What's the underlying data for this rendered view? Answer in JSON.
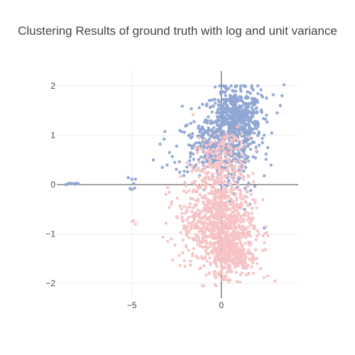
{
  "chart_data": {
    "type": "scatter",
    "title": "Clustering Results of ground truth with log and unit variance",
    "xlabel": "",
    "ylabel": "",
    "xlim": [
      -9.2,
      4.3
    ],
    "ylim": [
      -2.3,
      2.3
    ],
    "x_ticks": [
      -5,
      0
    ],
    "x_tick_labels": [
      "−5",
      "0"
    ],
    "y_ticks": [
      -2,
      -1,
      0,
      1,
      2
    ],
    "y_tick_labels": [
      "−2",
      "−1",
      "0",
      "1",
      "2"
    ],
    "grid": true,
    "zero_lines": true,
    "legend": "none",
    "colors": {
      "blue": "#8fa5d2",
      "pink": "#f6c3c5"
    },
    "series": [
      {
        "color": "#8fa5d2",
        "clusters": [
          {
            "cx": 0.6,
            "cy": 1.15,
            "sx": 0.8,
            "sy": 0.38,
            "n": 600
          },
          {
            "cx": -0.8,
            "cy": 0.75,
            "sx": 0.9,
            "sy": 0.3,
            "n": 180
          },
          {
            "cx": 1.2,
            "cy": 1.5,
            "sx": 0.6,
            "sy": 0.25,
            "n": 120
          },
          {
            "cx": 0.8,
            "cy": 0.2,
            "sx": 0.5,
            "sy": 0.25,
            "n": 50
          }
        ],
        "points": [
          [
            -8.3,
            0.02
          ],
          [
            -8.6,
            0.01
          ],
          [
            -8.1,
            0.03
          ],
          [
            -8.4,
            0.02
          ],
          [
            -8.7,
            0.0
          ],
          [
            -8.0,
            0.02
          ],
          [
            -8.2,
            0.01
          ],
          [
            -8.5,
            0.03
          ],
          [
            -5.2,
            0.14
          ],
          [
            -5.0,
            0.11
          ],
          [
            -4.9,
            0.02
          ],
          [
            -4.8,
            0.11
          ],
          [
            -5.1,
            -0.08
          ],
          [
            -5.0,
            -0.1
          ],
          [
            -4.85,
            -0.07
          ],
          [
            -3.8,
            0.5
          ],
          [
            -3.3,
            0.35
          ],
          [
            -3.2,
            0.92
          ],
          [
            -2.9,
            0.65
          ],
          [
            -2.6,
            0.45
          ],
          [
            3.5,
            2.02
          ],
          [
            3.4,
            1.8
          ],
          [
            3.3,
            1.6
          ],
          [
            2.9,
            1.82
          ],
          [
            2.6,
            0.75
          ],
          [
            2.5,
            0.62
          ],
          [
            2.3,
            0.85
          ],
          [
            1.6,
            -0.4
          ],
          [
            1.3,
            -0.5
          ],
          [
            2.4,
            -0.88
          ]
        ]
      },
      {
        "color": "#f6c3c5",
        "clusters": [
          {
            "cx": 0.1,
            "cy": -0.85,
            "sx": 0.85,
            "sy": 0.45,
            "n": 700
          },
          {
            "cx": 0.7,
            "cy": -1.45,
            "sx": 0.6,
            "sy": 0.2,
            "n": 200
          },
          {
            "cx": -1.3,
            "cy": -0.6,
            "sx": 0.7,
            "sy": 0.35,
            "n": 150
          },
          {
            "cx": -0.2,
            "cy": 0.35,
            "sx": 0.7,
            "sy": 0.3,
            "n": 180
          },
          {
            "cx": 0.3,
            "cy": 0.85,
            "sx": 0.5,
            "sy": 0.15,
            "n": 40
          }
        ],
        "points": [
          [
            -5.0,
            -0.75
          ],
          [
            -4.8,
            -0.8
          ],
          [
            -4.9,
            -0.73
          ],
          [
            -3.0,
            -1.15
          ],
          [
            -2.8,
            -1.1
          ],
          [
            -3.1,
            -0.2
          ],
          [
            -2.9,
            -0.15
          ],
          [
            -2.8,
            -0.4
          ],
          [
            -2.5,
            -0.65
          ],
          [
            1.8,
            -1.8
          ],
          [
            2.2,
            -1.7
          ],
          [
            3.0,
            -1.95
          ],
          [
            2.6,
            -1.85
          ],
          [
            2.0,
            -1.6
          ],
          [
            -1.4,
            -1.45
          ],
          [
            -0.8,
            -1.55
          ],
          [
            -0.3,
            -1.6
          ],
          [
            2.5,
            -0.85
          ]
        ]
      }
    ]
  }
}
